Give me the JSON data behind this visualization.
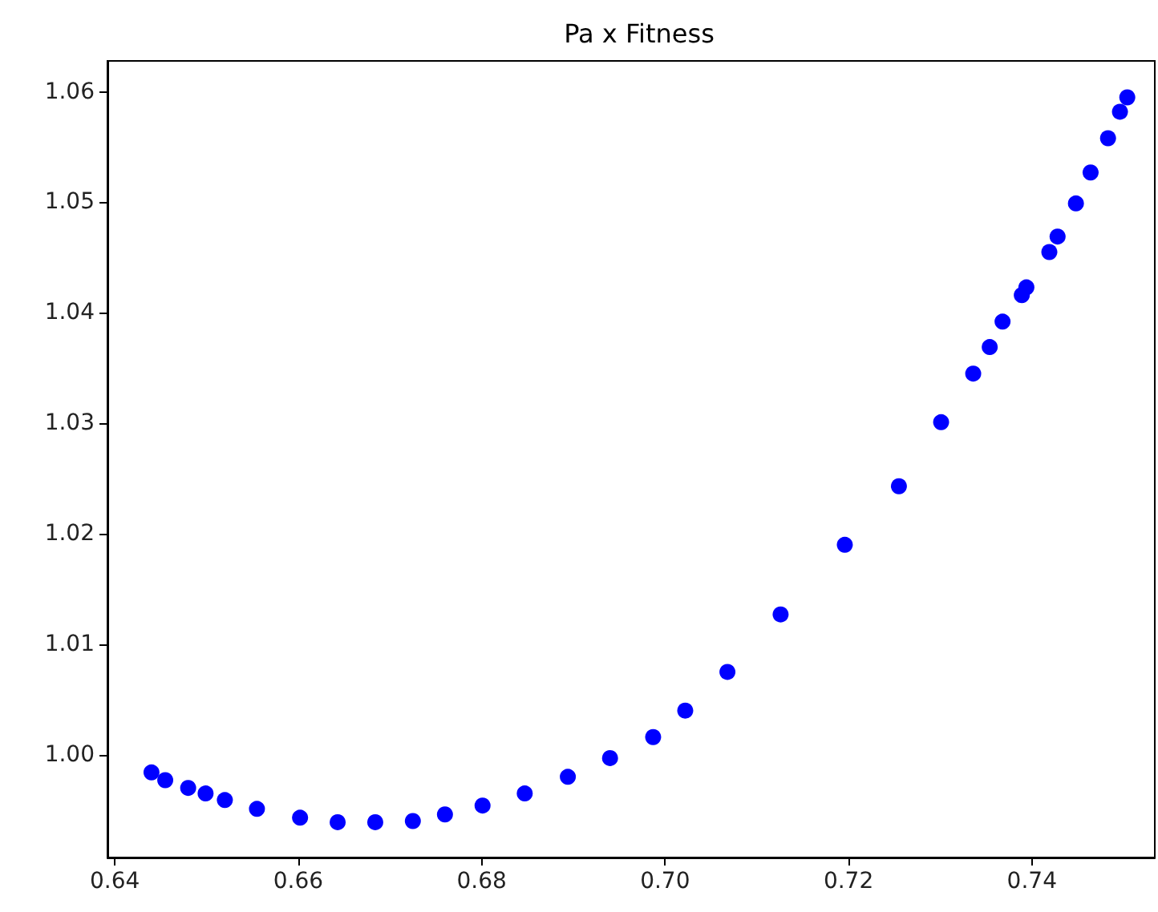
{
  "chart_data": {
    "type": "scatter",
    "title": "Pa x Fitness",
    "marker": "circle",
    "grid": false,
    "xlim": [
      0.6392,
      0.7534
    ],
    "ylim": [
      0.9907,
      1.0628
    ],
    "xticks": [
      0.64,
      0.66,
      0.68,
      {
        "value": 0.7,
        "label": "0.70"
      },
      0.72,
      0.74
    ],
    "yticks": [
      {
        "value": 1.0,
        "label": "1.00"
      },
      1.01,
      1.02,
      1.03,
      1.04,
      1.05,
      1.06
    ],
    "series": [
      {
        "color": "#0000ff",
        "x": [
          0.644,
          0.6455,
          0.648,
          0.6499,
          0.652,
          0.6555,
          0.6602,
          0.6643,
          0.6684,
          0.6725,
          0.676,
          0.6801,
          0.6847,
          0.6894,
          0.694,
          0.6987,
          0.7022,
          0.7068,
          0.7126,
          0.7196,
          0.7255,
          0.7301,
          0.7336,
          0.7354,
          0.7368,
          0.7389,
          0.7394,
          0.7419,
          0.7428,
          0.7448,
          0.7464,
          0.7483,
          0.7496,
          0.7504
        ],
        "values": [
          0.9984,
          0.9977,
          0.997,
          0.9965,
          0.9959,
          0.9951,
          0.9943,
          0.9939,
          0.9939,
          0.994,
          0.9946,
          0.9954,
          0.9965,
          0.998,
          0.9997,
          1.0016,
          1.004,
          1.0075,
          1.0127,
          1.019,
          1.0243,
          1.0301,
          1.0345,
          1.0369,
          1.0392,
          1.0416,
          1.0423,
          1.0455,
          1.0469,
          1.0499,
          1.0527,
          1.0558,
          1.0582,
          1.0595
        ]
      }
    ]
  }
}
